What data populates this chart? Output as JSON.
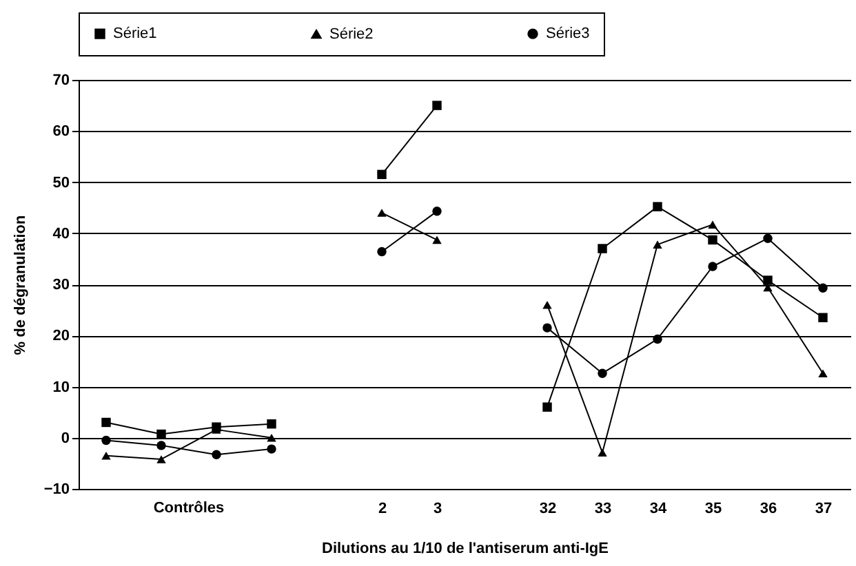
{
  "chart_data": {
    "type": "line",
    "xlabel": "Dilutions au 1/10 de l'antiserum anti-IgE",
    "ylabel": "% de dégranulation",
    "annotations": [
      "Contrôles"
    ],
    "categories": [
      null,
      null,
      null,
      null,
      null,
      "2",
      "3",
      null,
      "32",
      "33",
      "34",
      "35",
      "36",
      "37"
    ],
    "ylim": [
      -10,
      70
    ],
    "yticks": [
      -10,
      0,
      10,
      20,
      30,
      40,
      50,
      60,
      70
    ],
    "grid": "y",
    "legend": "top",
    "series": [
      {
        "name": "Série1",
        "color": "#000000",
        "marker": "square",
        "values": [
          3,
          0.7,
          2.1,
          2.7,
          null,
          51.5,
          65,
          null,
          6,
          37,
          45.2,
          38.7,
          30.8,
          23.5
        ]
      },
      {
        "name": "Série2",
        "color": "#000000",
        "marker": "triangle",
        "values": [
          -3.5,
          -4.2,
          1.6,
          0,
          null,
          44,
          38.7,
          null,
          26,
          -2.9,
          37.8,
          41.7,
          29.4,
          12.6
        ]
      },
      {
        "name": "Série3",
        "color": "#000000",
        "marker": "circle",
        "values": [
          -0.5,
          -1.5,
          -3.3,
          -2.2,
          null,
          36.4,
          44.3,
          null,
          21.5,
          12.6,
          19.3,
          33.5,
          39,
          29.3
        ]
      }
    ]
  }
}
